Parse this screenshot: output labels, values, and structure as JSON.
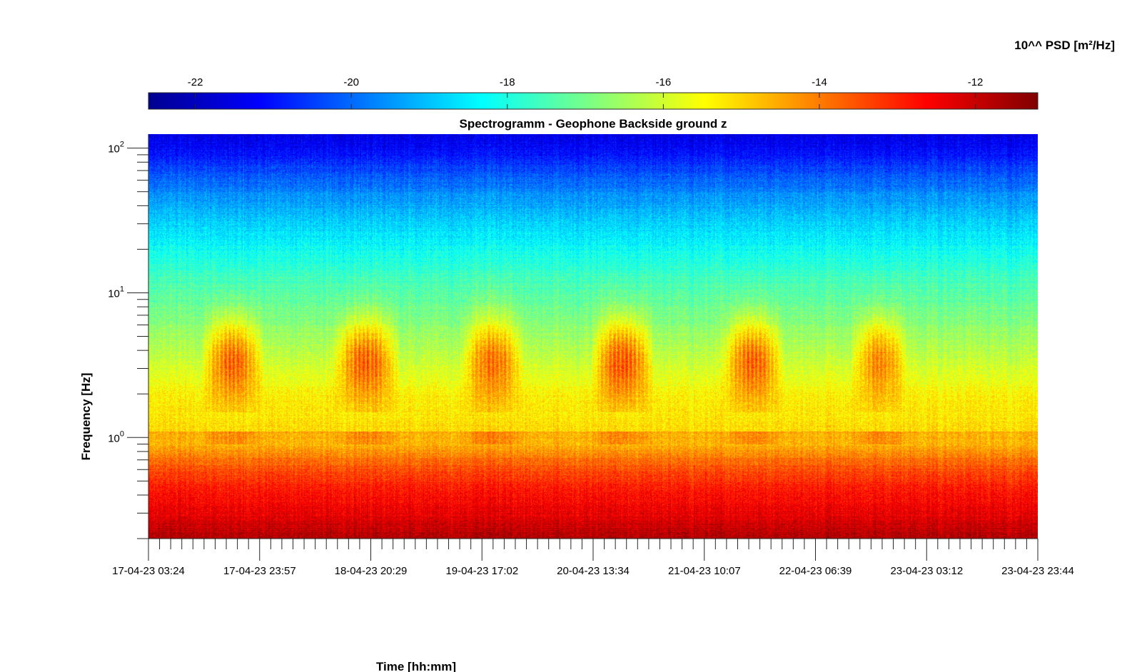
{
  "chart_data": {
    "type": "heatmap",
    "title": "Spectrogramm - Geophone Backside ground z",
    "xlabel": "Time [hh:mm]",
    "ylabel": "Frequency [Hz]",
    "y_scale": "log",
    "ylim": [
      0.2,
      125
    ],
    "x_ticks": [
      "17-04-23 03:24",
      "17-04-23 23:57",
      "18-04-23 20:29",
      "19-04-23 17:02",
      "20-04-23 13:34",
      "21-04-23 10:07",
      "22-04-23 06:39",
      "23-04-23 03:12",
      "23-04-23 23:44"
    ],
    "y_ticks": [
      {
        "base": "10",
        "exp": "0",
        "value": 1
      },
      {
        "base": "10",
        "exp": "1",
        "value": 10
      },
      {
        "base": "10",
        "exp": "2",
        "value": 100
      }
    ],
    "colorbar": {
      "label": "10^^ PSD [m²/Hz]",
      "colormap": "jet",
      "range": [
        -22.6,
        -11.2
      ],
      "ticks": [
        "-22",
        "-20",
        "-18",
        "-16",
        "-14",
        "-12"
      ],
      "tick_values": [
        -22,
        -20,
        -18,
        -16,
        -14,
        -12
      ]
    },
    "background_profile": [
      {
        "f": 0.2,
        "v": -11.7
      },
      {
        "f": 0.3,
        "v": -12.4
      },
      {
        "f": 0.45,
        "v": -12.9
      },
      {
        "f": 0.7,
        "v": -13.8
      },
      {
        "f": 1.0,
        "v": -15.0
      },
      {
        "f": 2.0,
        "v": -15.4
      },
      {
        "f": 4.0,
        "v": -16.3
      },
      {
        "f": 8.0,
        "v": -17.1
      },
      {
        "f": 15.0,
        "v": -17.8
      },
      {
        "f": 30.0,
        "v": -18.8
      },
      {
        "f": 60.0,
        "v": -20.0
      },
      {
        "f": 100.0,
        "v": -21.2
      },
      {
        "f": 125.0,
        "v": -21.4
      }
    ],
    "activity_events": [
      {
        "start": "17-04-23 13:00",
        "end": "18-04-23 01:00",
        "peak": -13.3
      },
      {
        "start": "18-04-23 13:00",
        "end": "19-04-23 02:00",
        "peak": -13.3
      },
      {
        "start": "19-04-23 13:00",
        "end": "20-04-23 01:00",
        "peak": -13.6
      },
      {
        "start": "20-04-23 13:00",
        "end": "21-04-23 01:00",
        "peak": -13.1
      },
      {
        "start": "21-04-23 13:00",
        "end": "22-04-23 01:00",
        "peak": -13.3
      },
      {
        "start": "22-04-23 13:00",
        "end": "23-04-23 00:00",
        "peak": -13.8
      }
    ]
  }
}
